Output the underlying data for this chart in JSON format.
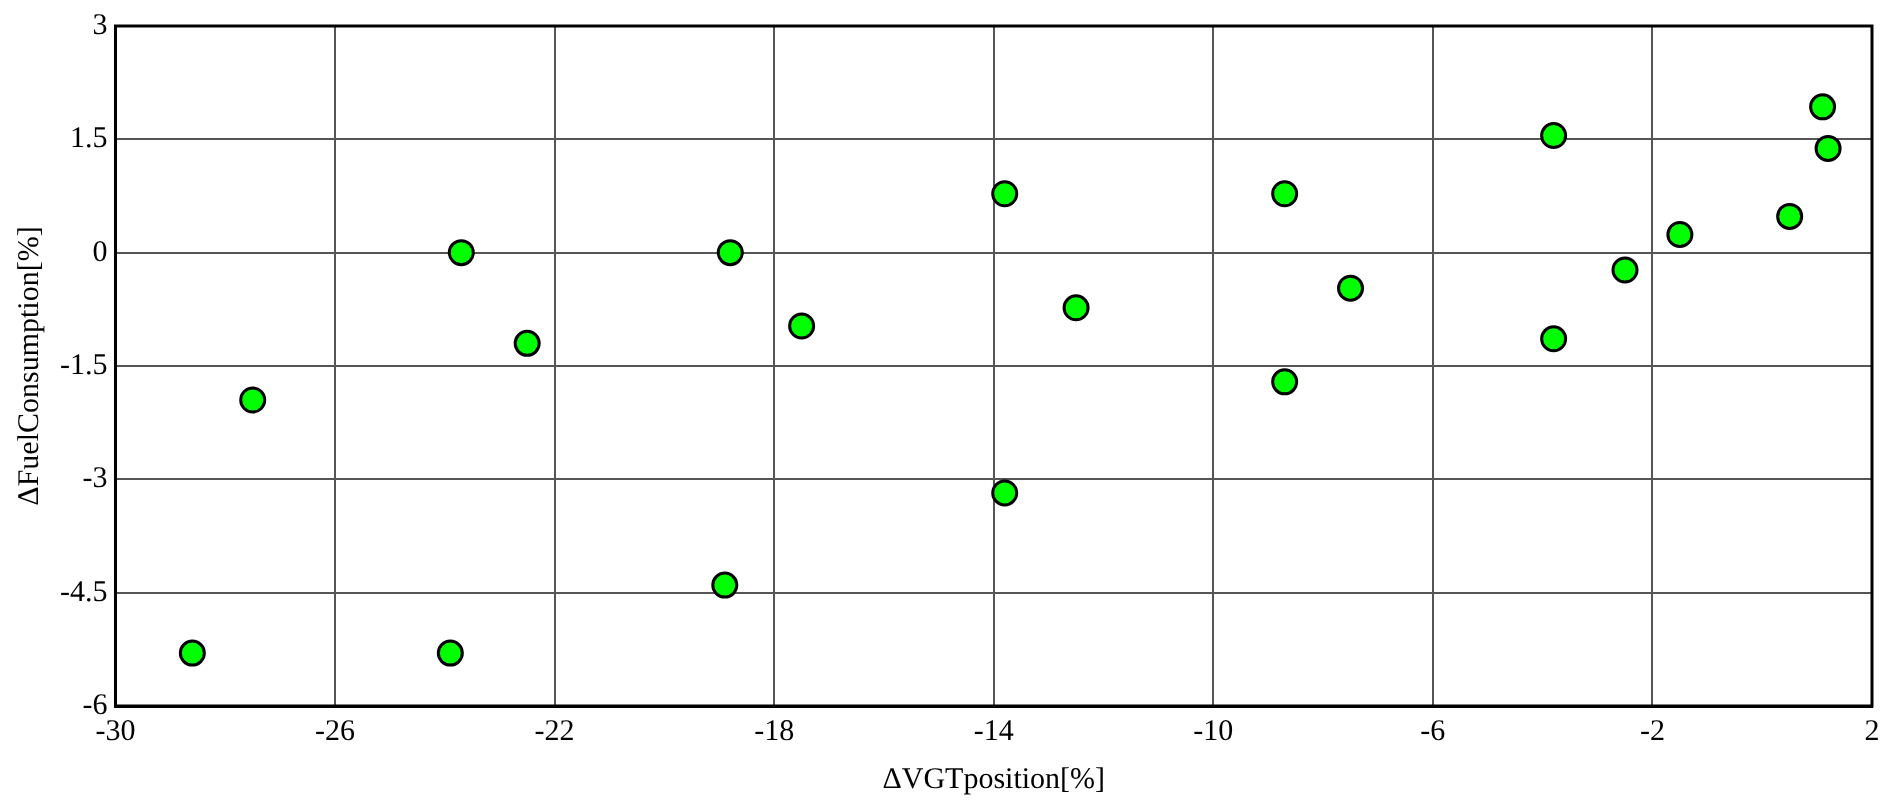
{
  "chart_data": {
    "type": "scatter",
    "xlabel": "ΔVGTposition[%]",
    "ylabel": "ΔFuelConsumption[%]",
    "x": [
      -28.6,
      -27.5,
      -23.7,
      -23.9,
      -22.5,
      -18.8,
      -18.9,
      -17.5,
      -13.8,
      -13.8,
      -12.5,
      -8.7,
      -8.7,
      -7.5,
      -3.8,
      -3.8,
      -2.5,
      -1.5,
      0.5,
      1.1,
      1.2
    ],
    "values": [
      -5.3,
      -1.95,
      0,
      -5.3,
      -1.2,
      0,
      -4.4,
      -0.97,
      0.78,
      -3.18,
      -0.73,
      0.78,
      -1.71,
      -0.47,
      1.55,
      -1.14,
      -0.23,
      0.24,
      0.48,
      1.93,
      1.38
    ],
    "color": "#00ff00",
    "xlim": [
      -30,
      2
    ],
    "xticks": [
      -30,
      -26,
      -22,
      -18,
      -14,
      -10,
      -6,
      -2,
      2
    ],
    "ylim": [
      -6,
      3
    ],
    "yticks": [
      -6,
      -4.5,
      -3,
      -1.5,
      0,
      1.5,
      3
    ],
    "grid": true,
    "marker": "circle",
    "legend": false
  }
}
